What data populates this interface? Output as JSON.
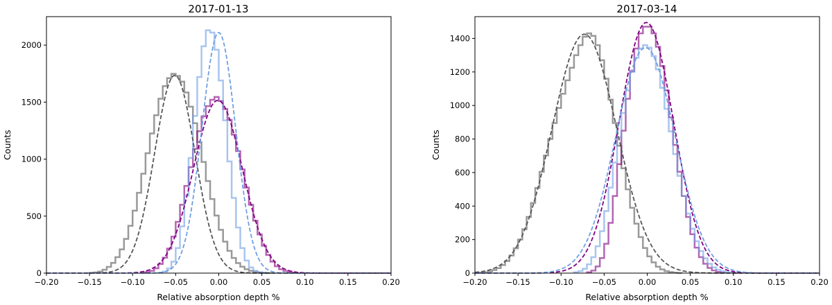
{
  "chart_data": [
    {
      "type": "histogram",
      "title": "2017-01-13",
      "xlabel": "Relative absorption depth %",
      "ylabel": "Counts",
      "xlim": [
        -0.2,
        0.2
      ],
      "ylim": [
        0,
        2250
      ],
      "xticks": [
        -0.2,
        -0.15,
        -0.1,
        -0.05,
        0.0,
        0.05,
        0.1,
        0.15,
        0.2
      ],
      "xtick_labels": [
        "−0.20",
        "−0.15",
        "−0.10",
        "−0.05",
        "0.00",
        "0.05",
        "0.10",
        "0.15",
        "0.20"
      ],
      "yticks": [
        0,
        500,
        1000,
        1500,
        2000
      ],
      "ytick_labels": [
        "0",
        "500",
        "1000",
        "1500",
        "2000"
      ],
      "grid": false,
      "series": [
        {
          "color": "#555555",
          "hist": {
            "x0": -0.15,
            "width": 0.005,
            "counts": [
              2,
              6,
              14,
              30,
              55,
              90,
              140,
              208,
              300,
              415,
              548,
              705,
              872,
              1052,
              1225,
              1385,
              1530,
              1640,
              1710,
              1748,
              1730,
              1680,
              1585,
              1460,
              1315,
              1150,
              975,
              808,
              650,
              505,
              380,
              276,
              195,
              133,
              88,
              56,
              34,
              20,
              12,
              6,
              3,
              1
            ]
          },
          "fit": {
            "mu": -0.051,
            "sigma": 0.0235,
            "amp": 1735
          }
        },
        {
          "color": "#800080",
          "hist": {
            "x0": -0.09,
            "width": 0.005,
            "counts": [
              3,
              9,
              20,
              42,
              80,
              135,
              215,
              320,
              450,
              600,
              765,
              930,
              1090,
              1245,
              1375,
              1465,
              1520,
              1545,
              1510,
              1440,
              1345,
              1215,
              1070,
              910,
              750,
              600,
              460,
              340,
              240,
              160,
              100,
              60,
              34,
              18,
              9,
              4
            ]
          },
          "fit": {
            "mu": -0.001,
            "sigma": 0.0283,
            "amp": 1515
          }
        },
        {
          "color": "#6f9ee3",
          "hist": {
            "x0": -0.07,
            "width": 0.005,
            "counts": [
              4,
              14,
              40,
              100,
              220,
              410,
              680,
              1010,
              1380,
              1720,
              1990,
              2130,
              2110,
              1960,
              1690,
              1340,
              980,
              660,
              400,
              220,
              110,
              50,
              20,
              7,
              2
            ]
          },
          "fit": {
            "mu": 0.0,
            "sigma": 0.0195,
            "amp": 2110
          }
        }
      ]
    },
    {
      "type": "histogram",
      "title": "2017-03-14",
      "xlabel": "Relative absorption depth %",
      "ylabel": "Counts",
      "xlim": [
        -0.2,
        0.2
      ],
      "ylim": [
        0,
        1530
      ],
      "xticks": [
        -0.2,
        -0.15,
        -0.1,
        -0.05,
        0.0,
        0.05,
        0.1,
        0.15,
        0.2
      ],
      "xtick_labels": [
        "−0.20",
        "−0.15",
        "−0.10",
        "−0.05",
        "0.00",
        "0.05",
        "0.10",
        "0.15",
        "0.20"
      ],
      "yticks": [
        0,
        200,
        400,
        600,
        800,
        1000,
        1200,
        1400
      ],
      "ytick_labels": [
        "0",
        "200",
        "400",
        "600",
        "800",
        "1000",
        "1200",
        "1400"
      ],
      "grid": false,
      "series": [
        {
          "color": "#555555",
          "hist": {
            "x0": -0.195,
            "width": 0.005,
            "counts": [
              2,
              5,
              10,
              18,
              30,
              48,
              72,
              105,
              148,
              200,
              262,
              335,
              418,
              508,
              604,
              702,
              800,
              895,
              985,
              1070,
              1150,
              1225,
              1300,
              1360,
              1410,
              1430,
              1415,
              1360,
              1270,
              1160,
              1035,
              895,
              760,
              625,
              500,
              390,
              295,
              215,
              150,
              100,
              64,
              38,
              22,
              12,
              6,
              3,
              1
            ]
          },
          "fit": {
            "mu": -0.073,
            "sigma": 0.0375,
            "amp": 1425
          }
        },
        {
          "color": "#800080",
          "hist": {
            "x0": -0.07,
            "width": 0.005,
            "counts": [
              5,
              15,
              40,
              90,
              175,
              300,
              460,
              650,
              850,
              1040,
              1205,
              1340,
              1430,
              1470,
              1470,
              1430,
              1350,
              1235,
              1090,
              930,
              765,
              605,
              460,
              335,
              232,
              152,
              95,
              56,
              31,
              16,
              7,
              3
            ]
          },
          "fit": {
            "mu": -0.001,
            "sigma": 0.0315,
            "amp": 1495
          }
        },
        {
          "color": "#6f9ee3",
          "hist": {
            "x0": -0.085,
            "width": 0.005,
            "counts": [
              5,
              12,
              26,
              52,
              95,
              160,
              250,
              370,
              510,
              660,
              810,
              955,
              1090,
              1200,
              1285,
              1340,
              1360,
              1345,
              1295,
              1215,
              1105,
              980,
              845,
              710,
              580,
              460,
              355,
              265,
              190,
              132,
              88,
              56,
              34,
              20,
              11,
              6,
              3,
              1
            ]
          },
          "fit": {
            "mu": -0.002,
            "sigma": 0.0345,
            "amp": 1345
          }
        }
      ]
    }
  ]
}
